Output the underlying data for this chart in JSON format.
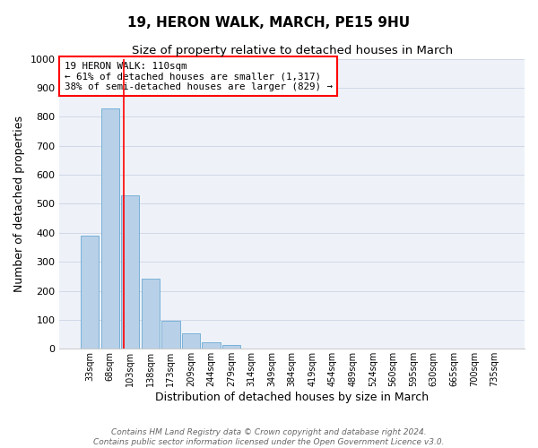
{
  "title": "19, HERON WALK, MARCH, PE15 9HU",
  "subtitle": "Size of property relative to detached houses in March",
  "xlabel": "Distribution of detached houses by size in March",
  "ylabel": "Number of detached properties",
  "bar_labels": [
    "33sqm",
    "68sqm",
    "103sqm",
    "138sqm",
    "173sqm",
    "209sqm",
    "244sqm",
    "279sqm",
    "314sqm",
    "349sqm",
    "384sqm",
    "419sqm",
    "454sqm",
    "489sqm",
    "524sqm",
    "560sqm",
    "595sqm",
    "630sqm",
    "665sqm",
    "700sqm",
    "735sqm"
  ],
  "bar_values": [
    390,
    828,
    530,
    242,
    97,
    52,
    22,
    12,
    0,
    0,
    0,
    0,
    0,
    0,
    0,
    0,
    0,
    0,
    0,
    0,
    0
  ],
  "bar_color": "#b8d0e8",
  "bar_edge_color": "#6aaad4",
  "annotation_box_text_line1": "19 HERON WALK: 110sqm",
  "annotation_box_text_line2": "← 61% of detached houses are smaller (1,317)",
  "annotation_box_text_line3": "38% of semi-detached houses are larger (829) →",
  "ylim": [
    0,
    1000
  ],
  "yticks": [
    0,
    100,
    200,
    300,
    400,
    500,
    600,
    700,
    800,
    900,
    1000
  ],
  "grid_color": "#d0d8e8",
  "background_color": "#eef2f8",
  "footer_line1": "Contains HM Land Registry data © Crown copyright and database right 2024.",
  "footer_line2": "Contains public sector information licensed under the Open Government Licence v3.0."
}
